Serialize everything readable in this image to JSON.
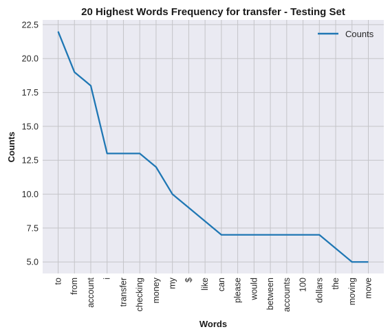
{
  "chart_data": {
    "type": "line",
    "title": "20 Highest Words Frequency for transfer - Testing Set",
    "xlabel": "Words",
    "ylabel": "Counts",
    "categories": [
      "to",
      "from",
      "account",
      "i",
      "transfer",
      "checking",
      "money",
      "my",
      "$",
      "like",
      "can",
      "please",
      "would",
      "between",
      "accounts",
      "100",
      "dollars",
      "the",
      "moving",
      "move"
    ],
    "series": [
      {
        "name": "Counts",
        "values": [
          22,
          19,
          18,
          13,
          13,
          13,
          12,
          10,
          9,
          8,
          7,
          7,
          7,
          7,
          7,
          7,
          7,
          6,
          5,
          5
        ]
      }
    ],
    "ylim": [
      4.15,
      22.85
    ],
    "yticks": [
      5.0,
      7.5,
      10.0,
      12.5,
      15.0,
      17.5,
      20.0,
      22.5
    ],
    "ytick_labels": [
      "5.0",
      "7.5",
      "10.0",
      "12.5",
      "15.0",
      "17.5",
      "20.0",
      "22.5"
    ],
    "grid": true,
    "legend": "top-right",
    "colors": {
      "line": "#1f77b4",
      "background": "#eaeaf2",
      "grid": "#c4c4c8"
    }
  }
}
